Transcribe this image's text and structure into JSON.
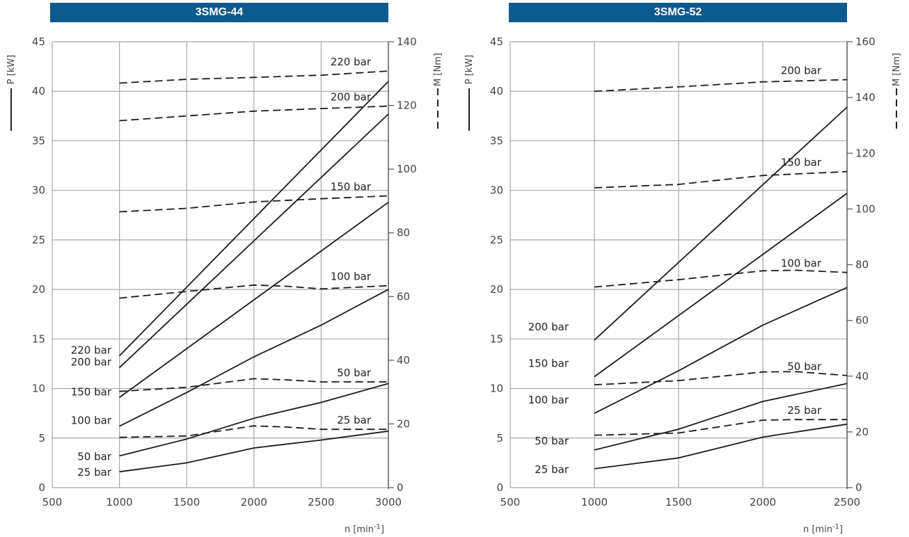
{
  "chart_data": [
    {
      "type": "line",
      "title": "3SMG-44",
      "xlabel": "n [min-1]",
      "ylabel": "P [kW]",
      "y2label": "M [Nm]",
      "xlim": [
        500,
        3000
      ],
      "xticks": [
        500,
        1000,
        1500,
        2000,
        2500,
        3000
      ],
      "ylim": [
        0,
        45
      ],
      "yticks": [
        0,
        5,
        10,
        15,
        20,
        25,
        30,
        35,
        40,
        45
      ],
      "y2lim": [
        0,
        140
      ],
      "y2ticks": [
        0,
        20,
        40,
        60,
        80,
        100,
        120,
        140
      ],
      "grid": true,
      "power_series": [
        {
          "name": "220 bar",
          "x": [
            1000,
            3000
          ],
          "y": [
            13.3,
            41.0
          ]
        },
        {
          "name": "200 bar",
          "x": [
            1000,
            3000
          ],
          "y": [
            12.1,
            37.7
          ]
        },
        {
          "name": "150 bar",
          "x": [
            1000,
            3000
          ],
          "y": [
            9.1,
            28.8
          ]
        },
        {
          "name": "100 bar",
          "x": [
            1000,
            1500,
            2000,
            2500,
            3000
          ],
          "y": [
            6.2,
            9.6,
            13.2,
            16.4,
            20.0
          ]
        },
        {
          "name": "50 bar",
          "x": [
            1000,
            1500,
            2000,
            2500,
            3000
          ],
          "y": [
            3.2,
            4.9,
            7.0,
            8.6,
            10.5
          ]
        },
        {
          "name": "25 bar",
          "x": [
            1000,
            1500,
            2000,
            2500,
            3000
          ],
          "y": [
            1.6,
            2.5,
            4.0,
            4.8,
            5.7
          ]
        }
      ],
      "torque_series": [
        {
          "name": "220 bar",
          "x": [
            1000,
            1500,
            2000,
            2500,
            3000
          ],
          "y": [
            127,
            128.2,
            128.8,
            129.5,
            130.8
          ]
        },
        {
          "name": "200 bar",
          "x": [
            1000,
            1500,
            2000,
            2500,
            3000
          ],
          "y": [
            115.2,
            116.7,
            118.2,
            119.0,
            119.8
          ]
        },
        {
          "name": "150 bar",
          "x": [
            1000,
            1500,
            2000,
            2500,
            3000
          ],
          "y": [
            86.6,
            87.7,
            89.7,
            90.7,
            91.6
          ]
        },
        {
          "name": "100 bar",
          "x": [
            1000,
            1500,
            2000,
            2250,
            2500,
            3000
          ],
          "y": [
            59.5,
            61.6,
            63.6,
            63.2,
            62.4,
            63.4
          ]
        },
        {
          "name": "50 bar",
          "x": [
            1000,
            1500,
            2000,
            2250,
            2500,
            3000
          ],
          "y": [
            30.2,
            31.5,
            34.2,
            33.8,
            33.2,
            33.2
          ]
        },
        {
          "name": "25 bar",
          "x": [
            1000,
            1500,
            2000,
            2250,
            2500,
            3000
          ],
          "y": [
            15.8,
            16.2,
            19.4,
            19.0,
            18.3,
            18.3
          ]
        }
      ]
    },
    {
      "type": "line",
      "title": "3SMG-52",
      "xlabel": "n [min-1]",
      "ylabel": "P [kW]",
      "y2label": "M [Nm]",
      "xlim": [
        500,
        2500
      ],
      "xticks": [
        500,
        1000,
        1500,
        2000,
        2500
      ],
      "ylim": [
        0,
        45
      ],
      "yticks": [
        0,
        5,
        10,
        15,
        20,
        25,
        30,
        35,
        40,
        45
      ],
      "y2lim": [
        0,
        160
      ],
      "y2ticks": [
        0,
        20,
        40,
        60,
        80,
        100,
        120,
        140,
        160
      ],
      "grid": true,
      "power_series": [
        {
          "name": "200 bar",
          "x": [
            1000,
            2500
          ],
          "y": [
            14.9,
            38.4
          ]
        },
        {
          "name": "150 bar",
          "x": [
            1000,
            2500
          ],
          "y": [
            11.2,
            29.7
          ]
        },
        {
          "name": "100 bar",
          "x": [
            1000,
            1500,
            2000,
            2500
          ],
          "y": [
            7.5,
            11.8,
            16.4,
            20.2
          ]
        },
        {
          "name": "50 bar",
          "x": [
            1000,
            1500,
            2000,
            2500
          ],
          "y": [
            3.8,
            5.9,
            8.7,
            10.5
          ]
        },
        {
          "name": "25 bar",
          "x": [
            1000,
            1500,
            2000,
            2500
          ],
          "y": [
            1.9,
            3.0,
            5.1,
            6.4
          ]
        }
      ],
      "torque_series": [
        {
          "name": "200 bar",
          "x": [
            1000,
            1500,
            2000,
            2500
          ],
          "y": [
            142.2,
            143.8,
            145.6,
            146.4
          ]
        },
        {
          "name": "150 bar",
          "x": [
            1000,
            1500,
            2000,
            2500
          ],
          "y": [
            107.6,
            108.8,
            112.0,
            113.4
          ]
        },
        {
          "name": "100 bar",
          "x": [
            1000,
            1500,
            2000,
            2200,
            2500
          ],
          "y": [
            72.0,
            74.6,
            77.8,
            78.0,
            77.2
          ]
        },
        {
          "name": "50 bar",
          "x": [
            1000,
            1500,
            2000,
            2200,
            2500
          ],
          "y": [
            36.9,
            38.4,
            41.5,
            41.6,
            40.2
          ]
        },
        {
          "name": "25 bar",
          "x": [
            1000,
            1500,
            2000,
            2200,
            2500
          ],
          "y": [
            18.8,
            19.6,
            24.2,
            24.4,
            24.4
          ]
        }
      ]
    }
  ]
}
